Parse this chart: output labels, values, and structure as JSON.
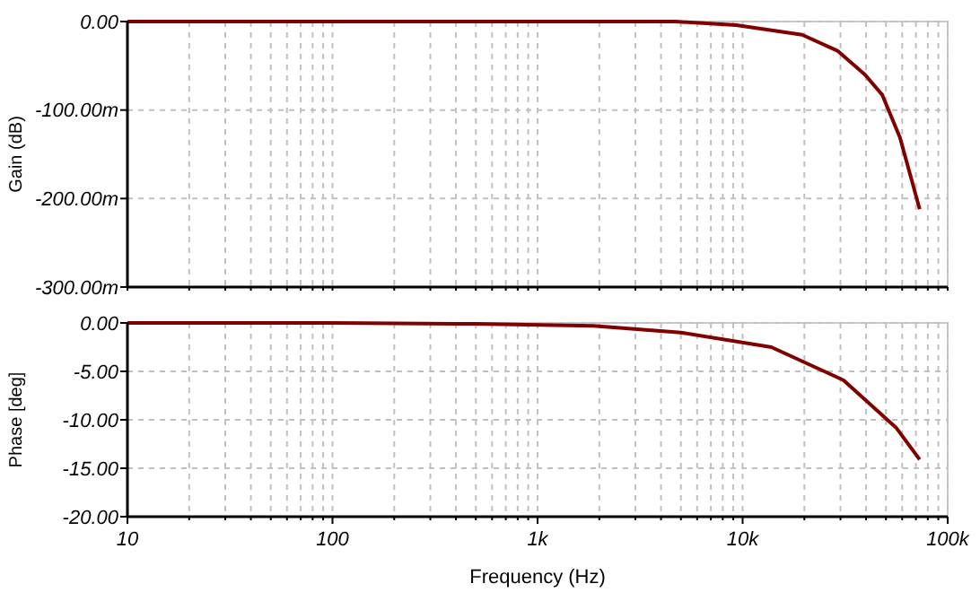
{
  "chart_data": [
    {
      "type": "line",
      "ylabel": "Gain (dB)",
      "log": "x",
      "grid": true,
      "tick_labels": "y",
      "marker": "none",
      "line_style": "solid",
      "xlim": [
        10,
        100000
      ],
      "xticks": [
        {
          "value": 10,
          "label": null
        },
        {
          "value": 20,
          "label": null
        },
        {
          "value": 30,
          "label": null
        },
        {
          "value": 40,
          "label": null
        },
        {
          "value": 50,
          "label": null
        },
        {
          "value": 60,
          "label": null
        },
        {
          "value": 70,
          "label": null
        },
        {
          "value": 80,
          "label": null
        },
        {
          "value": 90,
          "label": null
        },
        {
          "value": 100,
          "label": null
        },
        {
          "value": 200,
          "label": null
        },
        {
          "value": 300,
          "label": null
        },
        {
          "value": 400,
          "label": null
        },
        {
          "value": 500,
          "label": null
        },
        {
          "value": 600,
          "label": null
        },
        {
          "value": 700,
          "label": null
        },
        {
          "value": 800,
          "label": null
        },
        {
          "value": 900,
          "label": null
        },
        {
          "value": 1000,
          "label": null
        },
        {
          "value": 2000,
          "label": null
        },
        {
          "value": 3000,
          "label": null
        },
        {
          "value": 4000,
          "label": null
        },
        {
          "value": 5000,
          "label": null
        },
        {
          "value": 6000,
          "label": null
        },
        {
          "value": 7000,
          "label": null
        },
        {
          "value": 8000,
          "label": null
        },
        {
          "value": 9000,
          "label": null
        },
        {
          "value": 10000,
          "label": null
        },
        {
          "value": 20000,
          "label": null
        },
        {
          "value": 30000,
          "label": null
        },
        {
          "value": 40000,
          "label": null
        },
        {
          "value": 50000,
          "label": null
        },
        {
          "value": 60000,
          "label": null
        },
        {
          "value": 70000,
          "label": null
        },
        {
          "value": 80000,
          "label": null
        },
        {
          "value": 90000,
          "label": null
        },
        {
          "value": 100000,
          "label": null
        }
      ],
      "ylim": [
        -300,
        0
      ],
      "yticks": [
        {
          "value": 0,
          "label": "0.00"
        },
        {
          "value": -100,
          "label": "-100.00m"
        },
        {
          "value": -200,
          "label": "-200.00m"
        },
        {
          "value": -300,
          "label": "-300.00m"
        }
      ],
      "x": [
        10,
        100,
        1000,
        4700,
        9300,
        19500,
        29000,
        39500,
        48000,
        58500,
        73000
      ],
      "series": [
        {
          "color": "#800000",
          "values": [
            0,
            0,
            0,
            0,
            -4,
            -15,
            -33,
            -60,
            -83,
            -131,
            -212
          ]
        }
      ]
    },
    {
      "type": "line",
      "xlabel": "Frequency (Hz)",
      "ylabel": "Phase [deg]",
      "log": "x",
      "grid": true,
      "marker": "none",
      "line_style": "solid",
      "xlim": [
        10,
        100000
      ],
      "xticks": [
        {
          "value": 10,
          "label": "10"
        },
        {
          "value": 20,
          "label": null
        },
        {
          "value": 30,
          "label": null
        },
        {
          "value": 40,
          "label": null
        },
        {
          "value": 50,
          "label": null
        },
        {
          "value": 60,
          "label": null
        },
        {
          "value": 70,
          "label": null
        },
        {
          "value": 80,
          "label": null
        },
        {
          "value": 90,
          "label": null
        },
        {
          "value": 100,
          "label": "100"
        },
        {
          "value": 200,
          "label": null
        },
        {
          "value": 300,
          "label": null
        },
        {
          "value": 400,
          "label": null
        },
        {
          "value": 500,
          "label": null
        },
        {
          "value": 600,
          "label": null
        },
        {
          "value": 700,
          "label": null
        },
        {
          "value": 800,
          "label": null
        },
        {
          "value": 900,
          "label": null
        },
        {
          "value": 1000,
          "label": "1k"
        },
        {
          "value": 2000,
          "label": null
        },
        {
          "value": 3000,
          "label": null
        },
        {
          "value": 4000,
          "label": null
        },
        {
          "value": 5000,
          "label": null
        },
        {
          "value": 6000,
          "label": null
        },
        {
          "value": 7000,
          "label": null
        },
        {
          "value": 8000,
          "label": null
        },
        {
          "value": 9000,
          "label": null
        },
        {
          "value": 10000,
          "label": "10k"
        },
        {
          "value": 20000,
          "label": null
        },
        {
          "value": 30000,
          "label": null
        },
        {
          "value": 40000,
          "label": null
        },
        {
          "value": 50000,
          "label": null
        },
        {
          "value": 60000,
          "label": null
        },
        {
          "value": 70000,
          "label": null
        },
        {
          "value": 80000,
          "label": null
        },
        {
          "value": 90000,
          "label": null
        },
        {
          "value": 100000,
          "label": "100k"
        }
      ],
      "ylim": [
        -20,
        0
      ],
      "yticks": [
        {
          "value": 0,
          "label": "0.00"
        },
        {
          "value": -5,
          "label": "-5.00"
        },
        {
          "value": -10,
          "label": "-10.00"
        },
        {
          "value": -15,
          "label": "-15.00"
        },
        {
          "value": -20,
          "label": "-20.00"
        }
      ],
      "x": [
        10,
        100,
        500,
        1870,
        5000,
        13800,
        31000,
        56000,
        73000
      ],
      "series": [
        {
          "color": "#800000",
          "values": [
            0,
            0,
            -0.1,
            -0.3,
            -1.0,
            -2.5,
            -5.9,
            -10.8,
            -14.1
          ]
        }
      ]
    }
  ]
}
